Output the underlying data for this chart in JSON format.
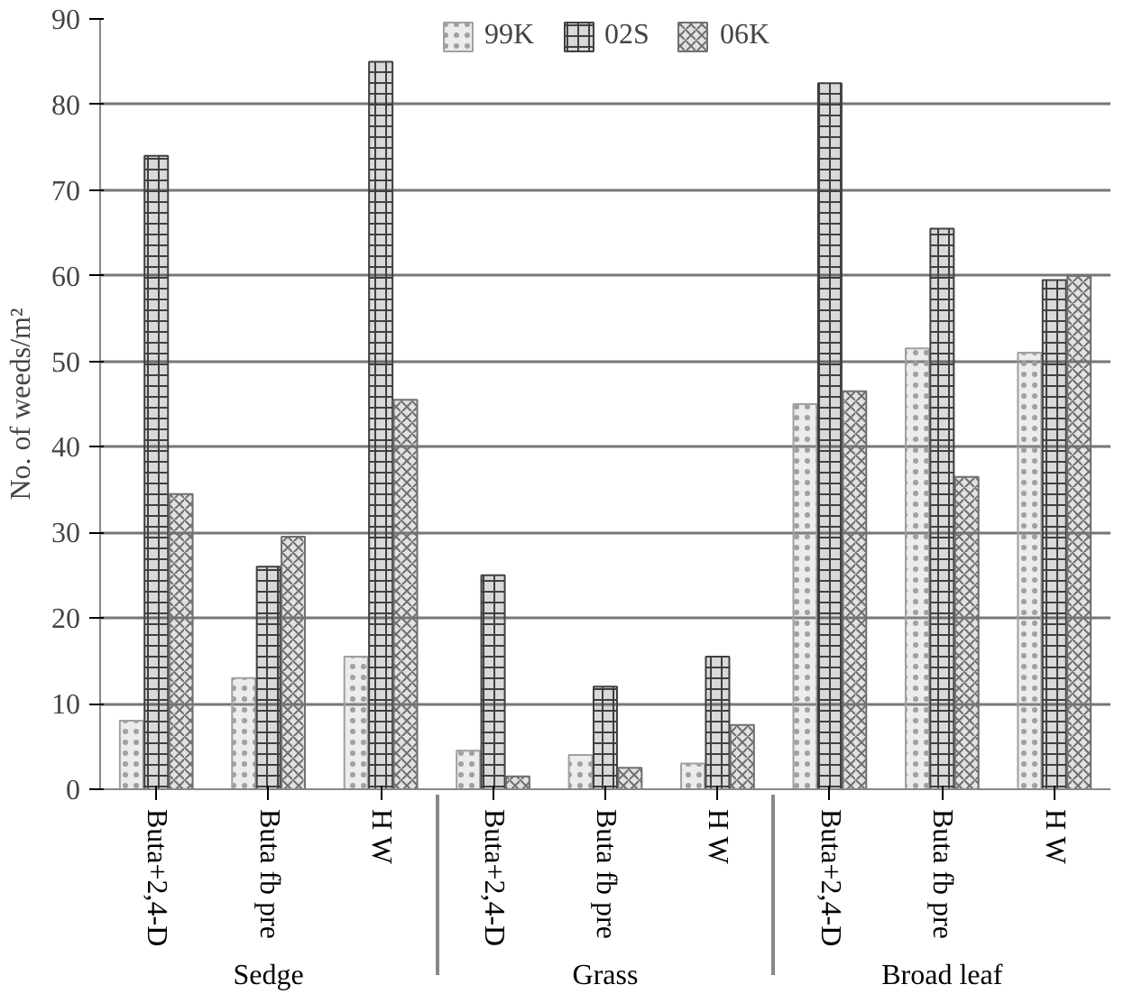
{
  "chart_data": {
    "type": "bar",
    "categories": [
      "Buta+2,4-D",
      "Buta fb pre",
      "H W",
      "Buta+2,4-D",
      "Buta fb pre",
      "H W",
      "Buta+2,4-D",
      "Buta fb pre",
      "H W"
    ],
    "annotations": [
      "Sedge",
      "Grass",
      "Broad leaf"
    ],
    "ylabel": "No. of weeds/m²",
    "series": [
      {
        "name": "99K",
        "color": "#a0a0a0",
        "values": [
          8,
          13,
          15.5,
          4.5,
          4,
          3,
          45,
          51.5,
          51
        ]
      },
      {
        "name": "02S",
        "color": "#404040",
        "values": [
          74,
          26,
          85,
          25,
          12,
          15.5,
          82.5,
          65.5,
          59.5
        ]
      },
      {
        "name": "06K",
        "color": "#707070",
        "values": [
          34.5,
          29.5,
          45.5,
          1.5,
          2.5,
          7.5,
          46.5,
          36.5,
          60
        ]
      }
    ],
    "ylim": [
      0,
      90
    ],
    "yticks": [
      0,
      10,
      20,
      30,
      40,
      50,
      60,
      70,
      80,
      90
    ],
    "grid": "y",
    "legend": "top"
  }
}
